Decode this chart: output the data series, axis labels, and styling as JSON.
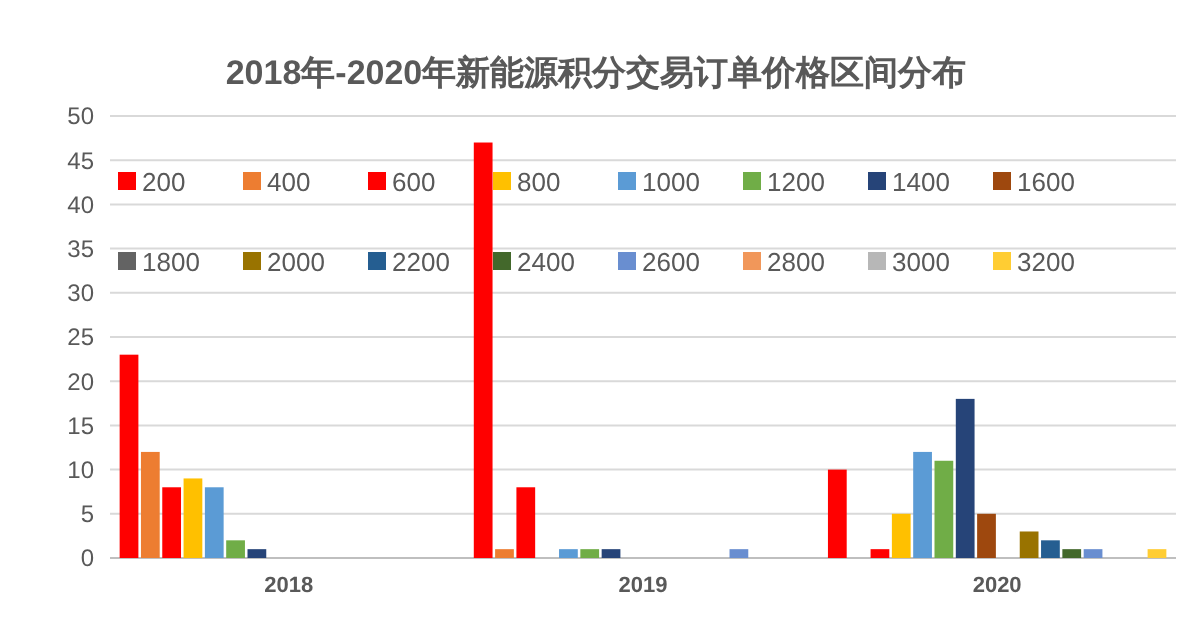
{
  "chart_data": {
    "type": "bar",
    "title": "2018年-2020年新能源积分交易订单价格区间分布",
    "categories": [
      "2018",
      "2019",
      "2020"
    ],
    "ylim": [
      0,
      50
    ],
    "yticks": [
      0,
      5,
      10,
      15,
      20,
      25,
      30,
      35,
      40,
      45,
      50
    ],
    "grid": "y",
    "legend": "top",
    "series": [
      {
        "name": "200",
        "color": "#ff0000",
        "values": [
          23,
          47,
          10
        ]
      },
      {
        "name": "400",
        "color": "#ed7d31",
        "values": [
          12,
          1,
          0
        ]
      },
      {
        "name": "600",
        "color": "#ff0000",
        "values": [
          8,
          8,
          1
        ]
      },
      {
        "name": "800",
        "color": "#ffc000",
        "values": [
          9,
          0,
          5
        ]
      },
      {
        "name": "1000",
        "color": "#5b9bd5",
        "values": [
          8,
          1,
          12
        ]
      },
      {
        "name": "1200",
        "color": "#70ad47",
        "values": [
          2,
          1,
          11
        ]
      },
      {
        "name": "1400",
        "color": "#264478",
        "values": [
          1,
          1,
          18
        ]
      },
      {
        "name": "1600",
        "color": "#9e480e",
        "values": [
          0,
          0,
          5
        ]
      },
      {
        "name": "1800",
        "color": "#636363",
        "values": [
          0,
          0,
          0
        ]
      },
      {
        "name": "2000",
        "color": "#997300",
        "values": [
          0,
          0,
          3
        ]
      },
      {
        "name": "2200",
        "color": "#255e91",
        "values": [
          0,
          0,
          2
        ]
      },
      {
        "name": "2400",
        "color": "#43682b",
        "values": [
          0,
          0,
          1
        ]
      },
      {
        "name": "2600",
        "color": "#698ed0",
        "values": [
          0,
          1,
          1
        ]
      },
      {
        "name": "2800",
        "color": "#f1975a",
        "values": [
          0,
          0,
          0
        ]
      },
      {
        "name": "3000",
        "color": "#b7b7b7",
        "values": [
          0,
          0,
          0
        ]
      },
      {
        "name": "3200",
        "color": "#ffcd33",
        "values": [
          0,
          0,
          1
        ]
      }
    ]
  }
}
